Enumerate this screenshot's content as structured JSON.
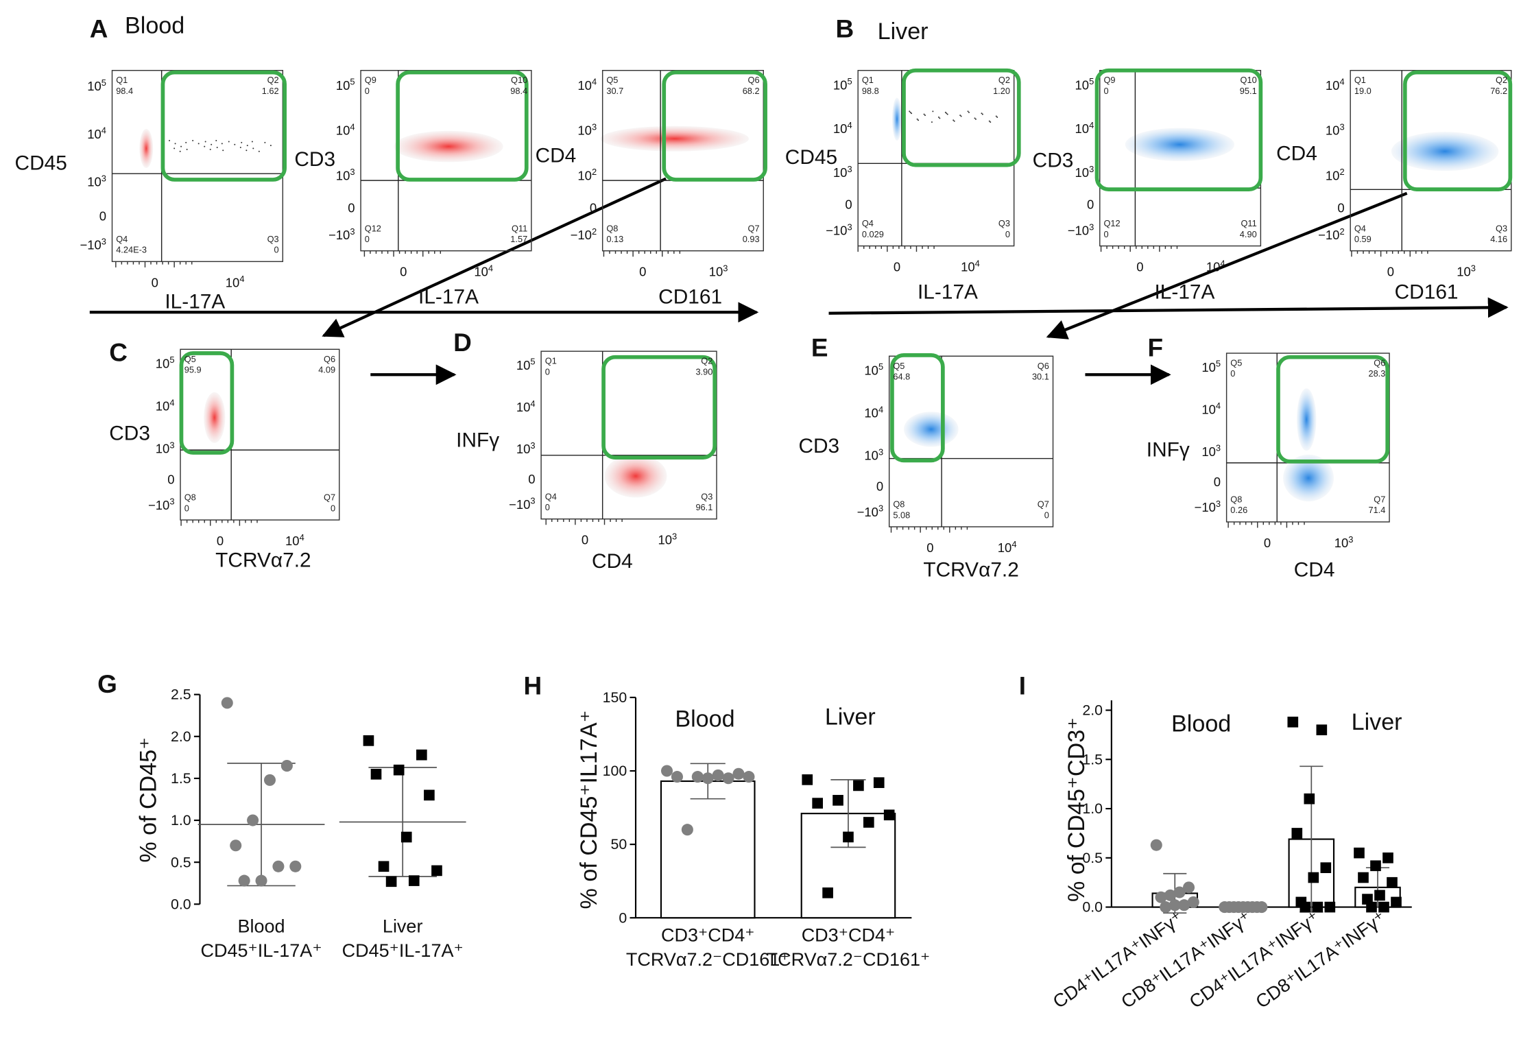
{
  "panels": [
    {
      "letter": "A",
      "title": "Blood",
      "plots": [
        {
          "ylabel": "CD45",
          "xlabel": "IL-17A",
          "quadrants": [
            {
              "name": "Q1",
              "value": "98.4"
            },
            {
              "name": "Q2",
              "value": "1.62"
            },
            {
              "name": "Q4",
              "value": "4.24E-3"
            },
            {
              "name": "Q3",
              "value": "0"
            }
          ],
          "yticks": [
            {
              "b": "10",
              "e": "5"
            },
            {
              "b": "10",
              "e": "4"
            },
            {
              "b": "10",
              "e": "3"
            },
            {
              "b": "0"
            },
            {
              "b": "−10",
              "e": "3"
            }
          ],
          "xticks": [
            {
              "b": "0"
            },
            {
              "b": "10",
              "e": "4"
            }
          ]
        },
        {
          "ylabel": "CD3",
          "xlabel": "IL-17A",
          "quadrants": [
            {
              "name": "Q9",
              "value": "0"
            },
            {
              "name": "Q10",
              "value": "98.4"
            },
            {
              "name": "Q12",
              "value": "0"
            },
            {
              "name": "Q11",
              "value": "1.57"
            }
          ],
          "yticks": [
            {
              "b": "10",
              "e": "5"
            },
            {
              "b": "10",
              "e": "4"
            },
            {
              "b": "10",
              "e": "3"
            },
            {
              "b": "0"
            },
            {
              "b": "−10",
              "e": "3"
            }
          ],
          "xticks": [
            {
              "b": "0"
            },
            {
              "b": "10",
              "e": "4"
            }
          ]
        },
        {
          "ylabel": "CD4",
          "xlabel": "CD161",
          "quadrants": [
            {
              "name": "Q5",
              "value": "30.7"
            },
            {
              "name": "Q6",
              "value": "68.2"
            },
            {
              "name": "Q8",
              "value": "0.13"
            },
            {
              "name": "Q7",
              "value": "0.93"
            }
          ],
          "yticks": [
            {
              "b": "10",
              "e": "4"
            },
            {
              "b": "10",
              "e": "3"
            },
            {
              "b": "10",
              "e": "2"
            },
            {
              "b": "0"
            },
            {
              "b": "−10",
              "e": "2"
            }
          ],
          "xticks": [
            {
              "b": "0"
            },
            {
              "b": "10",
              "e": "3"
            }
          ]
        }
      ]
    },
    {
      "letter": "B",
      "title": "Liver",
      "plots": [
        {
          "ylabel": "CD45",
          "xlabel": "IL-17A",
          "quadrants": [
            {
              "name": "Q1",
              "value": "98.8"
            },
            {
              "name": "Q2",
              "value": "1.20"
            },
            {
              "name": "Q4",
              "value": "0.029"
            },
            {
              "name": "Q3",
              "value": "0"
            }
          ],
          "yticks": [
            {
              "b": "10",
              "e": "5"
            },
            {
              "b": "10",
              "e": "4"
            },
            {
              "b": "10",
              "e": "3"
            },
            {
              "b": "0"
            },
            {
              "b": "−10",
              "e": "3"
            }
          ],
          "xticks": [
            {
              "b": "0"
            },
            {
              "b": "10",
              "e": "4"
            }
          ]
        },
        {
          "ylabel": "CD3",
          "xlabel": "IL-17A",
          "quadrants": [
            {
              "name": "Q9",
              "value": "0"
            },
            {
              "name": "Q10",
              "value": "95.1"
            },
            {
              "name": "Q12",
              "value": "0"
            },
            {
              "name": "Q11",
              "value": "4.90"
            }
          ],
          "yticks": [
            {
              "b": "10",
              "e": "5"
            },
            {
              "b": "10",
              "e": "4"
            },
            {
              "b": "10",
              "e": "3"
            },
            {
              "b": "0"
            },
            {
              "b": "−10",
              "e": "3"
            }
          ],
          "xticks": [
            {
              "b": "0"
            },
            {
              "b": "10",
              "e": "4"
            }
          ]
        },
        {
          "ylabel": "CD4",
          "xlabel": "CD161",
          "quadrants": [
            {
              "name": "Q1",
              "value": "19.0"
            },
            {
              "name": "Q2",
              "value": "76.2"
            },
            {
              "name": "Q4",
              "value": "0.59"
            },
            {
              "name": "Q3",
              "value": "4.16"
            }
          ],
          "yticks": [
            {
              "b": "10",
              "e": "4"
            },
            {
              "b": "10",
              "e": "3"
            },
            {
              "b": "10",
              "e": "2"
            },
            {
              "b": "0"
            },
            {
              "b": "−10",
              "e": "2"
            }
          ],
          "xticks": [
            {
              "b": "0"
            },
            {
              "b": "10",
              "e": "3"
            }
          ]
        }
      ]
    },
    {
      "letter": "C",
      "plots": [
        {
          "ylabel": "CD3",
          "xlabel": "TCRVα7.2",
          "quadrants": [
            {
              "name": "Q5",
              "value": "95.9"
            },
            {
              "name": "Q6",
              "value": "4.09"
            },
            {
              "name": "Q8",
              "value": "0"
            },
            {
              "name": "Q7",
              "value": "0"
            }
          ],
          "yticks": [
            {
              "b": "10",
              "e": "5"
            },
            {
              "b": "10",
              "e": "4"
            },
            {
              "b": "10",
              "e": "3"
            },
            {
              "b": "0"
            },
            {
              "b": "−10",
              "e": "3"
            }
          ],
          "xticks": [
            {
              "b": "0"
            },
            {
              "b": "10",
              "e": "4"
            }
          ]
        }
      ]
    },
    {
      "letter": "D",
      "plots": [
        {
          "ylabel": "INFγ",
          "xlabel": "CD4",
          "quadrants": [
            {
              "name": "Q1",
              "value": "0"
            },
            {
              "name": "Q2",
              "value": "3.90"
            },
            {
              "name": "Q4",
              "value": "0"
            },
            {
              "name": "Q3",
              "value": "96.1"
            }
          ],
          "yticks": [
            {
              "b": "10",
              "e": "5"
            },
            {
              "b": "10",
              "e": "4"
            },
            {
              "b": "10",
              "e": "3"
            },
            {
              "b": "0"
            },
            {
              "b": "−10",
              "e": "3"
            }
          ],
          "xticks": [
            {
              "b": "0"
            },
            {
              "b": "10",
              "e": "3"
            }
          ]
        }
      ]
    },
    {
      "letter": "E",
      "plots": [
        {
          "ylabel": "CD3",
          "xlabel": "TCRVα7.2",
          "quadrants": [
            {
              "name": "Q5",
              "value": "64.8"
            },
            {
              "name": "Q6",
              "value": "30.1"
            },
            {
              "name": "Q8",
              "value": "5.08"
            },
            {
              "name": "Q7",
              "value": "0"
            }
          ],
          "yticks": [
            {
              "b": "10",
              "e": "5"
            },
            {
              "b": "10",
              "e": "4"
            },
            {
              "b": "10",
              "e": "3"
            },
            {
              "b": "0"
            },
            {
              "b": "−10",
              "e": "3"
            }
          ],
          "xticks": [
            {
              "b": "0"
            },
            {
              "b": "10",
              "e": "4"
            }
          ]
        }
      ]
    },
    {
      "letter": "F",
      "plots": [
        {
          "ylabel": "INFγ",
          "xlabel": "CD4",
          "quadrants": [
            {
              "name": "Q5",
              "value": "0"
            },
            {
              "name": "Q6",
              "value": "28.3"
            },
            {
              "name": "Q8",
              "value": "0.26"
            },
            {
              "name": "Q7",
              "value": "71.4"
            }
          ],
          "yticks": [
            {
              "b": "10",
              "e": "5"
            },
            {
              "b": "10",
              "e": "4"
            },
            {
              "b": "10",
              "e": "3"
            },
            {
              "b": "0"
            },
            {
              "b": "−10",
              "e": "3"
            }
          ],
          "xticks": [
            {
              "b": "0"
            },
            {
              "b": "10",
              "e": "3"
            }
          ]
        }
      ]
    }
  ],
  "chart_data": [
    {
      "type": "dot",
      "panel": "G",
      "ylabel": "% of CD45⁺",
      "ylim": [
        0,
        2.5
      ],
      "yticks": [
        {
          "value": 0,
          "label": "0.0"
        },
        0.5,
        {
          "value": 1,
          "label": "1.0"
        },
        1.5,
        {
          "value": 2,
          "label": "2.0"
        },
        2.5
      ],
      "groups": [
        {
          "label": [
            "Blood",
            "CD45⁺IL-17A⁺"
          ],
          "color": "#808080",
          "marker": "circle",
          "values": [
            2.4,
            1.65,
            1.48,
            1.0,
            0.7,
            0.45,
            0.45,
            0.28,
            0.28
          ],
          "mean": 0.95,
          "sd": 0.73
        },
        {
          "label": [
            "Liver",
            "CD45⁺IL-17A⁺"
          ],
          "color": "#000000",
          "marker": "square",
          "values": [
            1.95,
            1.78,
            1.6,
            1.55,
            1.3,
            0.8,
            0.45,
            0.4,
            0.28,
            0.27
          ],
          "mean": 0.98,
          "sd": 0.65
        }
      ]
    },
    {
      "type": "bar",
      "panel": "H",
      "ylabel": "% of CD45⁺IL17A⁺",
      "annotations": [
        "Blood",
        "Liver"
      ],
      "ylim": [
        0,
        150
      ],
      "yticks": [
        0,
        50,
        100,
        150
      ],
      "groups": [
        {
          "label": [
            "CD3⁺CD4⁺",
            "TCRVα7.2⁻CD161⁺"
          ],
          "color": "#808080",
          "marker": "circle",
          "values": [
            100,
            98,
            97,
            96,
            96,
            96,
            95,
            95,
            60
          ],
          "mean": 93,
          "sd": 12
        },
        {
          "label": [
            "CD3⁺CD4⁺",
            "TCRVα7.2⁻CD161⁺"
          ],
          "color": "#000000",
          "marker": "square",
          "values": [
            94,
            92,
            90,
            80,
            78,
            70,
            65,
            55,
            17
          ],
          "mean": 71,
          "sd": 23
        }
      ]
    },
    {
      "type": "bar",
      "panel": "I",
      "ylabel": "% of CD45⁺CD3⁺",
      "annotations": [
        "Blood",
        "Liver"
      ],
      "ylim": [
        0,
        2.1
      ],
      "yticks": [
        {
          "value": 0,
          "label": "0.0"
        },
        0.5,
        {
          "value": 1,
          "label": "1.0"
        },
        1.5,
        {
          "value": 2,
          "label": "2.0"
        }
      ],
      "groups": [
        {
          "label": [
            "CD4⁺IL17A⁺INFγ⁺"
          ],
          "color": "#808080",
          "marker": "circle",
          "values": [
            0.63,
            0.2,
            0.15,
            0.12,
            0.1,
            0.05,
            0.02,
            0.02,
            0
          ],
          "mean": 0.14,
          "sd": 0.2
        },
        {
          "label": [
            "CD8⁺IL17A⁺INFγ⁺"
          ],
          "color": "#808080",
          "marker": "circle",
          "values": [
            0,
            0,
            0,
            0,
            0,
            0,
            0,
            0,
            0
          ],
          "mean": 0,
          "sd": 0
        },
        {
          "label": [
            "CD4⁺IL17A⁺INFγ⁺"
          ],
          "color": "#000000",
          "marker": "square",
          "values": [
            1.88,
            1.8,
            1.1,
            0.75,
            0.4,
            0.3,
            0.05,
            0,
            0,
            0
          ],
          "mean": 0.69,
          "sd": 0.74
        },
        {
          "label": [
            "CD8⁺IL17A⁺INFγ⁺"
          ],
          "color": "#000000",
          "marker": "square",
          "values": [
            0.55,
            0.5,
            0.42,
            0.3,
            0.25,
            0.12,
            0.08,
            0.05,
            0,
            0
          ],
          "mean": 0.2,
          "sd": 0.2
        }
      ]
    }
  ]
}
